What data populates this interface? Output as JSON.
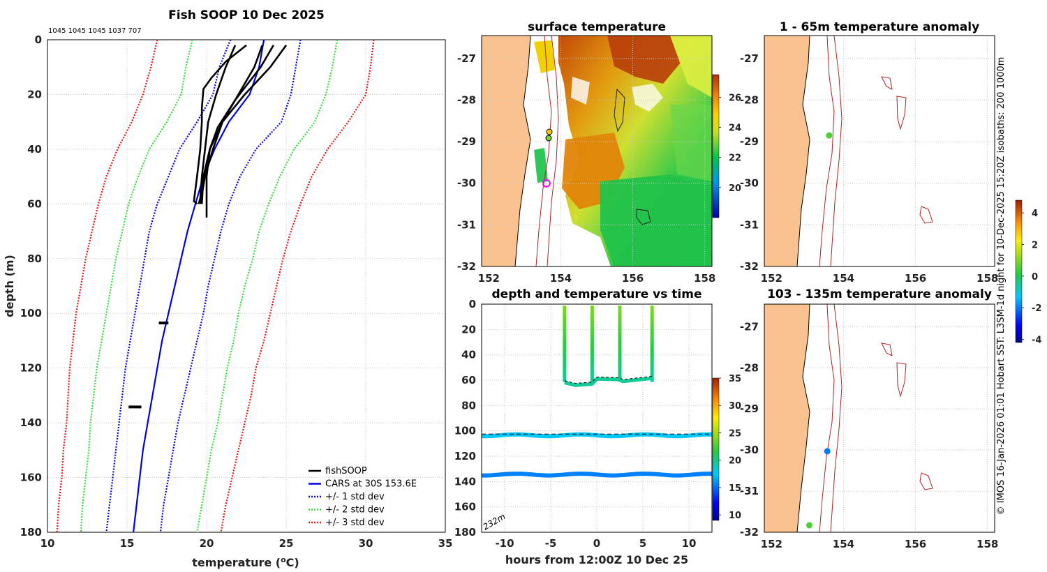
{
  "chart_data": [
    {
      "type": "line",
      "title": "Fish SOOP 10 Dec 2025",
      "subtitle": "1045 1045 1045 1037 707",
      "xlabel": "temperature (",
      "xlabel_sup": "o",
      "xlabel_tail": "C)",
      "ylabel": "depth (m)",
      "xlim": [
        10,
        35
      ],
      "ylim": [
        0,
        180
      ],
      "x_ticks": [
        "10",
        "15",
        "20",
        "25",
        "30",
        "35"
      ],
      "y_ticks": [
        "0",
        "20",
        "40",
        "60",
        "80",
        "100",
        "120",
        "140",
        "160",
        "180"
      ],
      "depths": [
        0,
        10,
        20,
        30,
        40,
        50,
        60,
        70,
        80,
        90,
        100,
        110,
        120,
        130,
        140,
        150,
        160,
        170,
        180
      ],
      "series": [
        {
          "name": "CARS at 30S 153.6E",
          "color": "#0000e6",
          "style": "solid",
          "values": [
            23.6,
            23.3,
            22.7,
            21.4,
            20.5,
            19.8,
            19.3,
            18.8,
            18.4,
            18.0,
            17.6,
            17.2,
            16.9,
            16.6,
            16.3,
            16.0,
            15.8,
            15.6,
            15.4
          ]
        },
        {
          "name": "+/- 1 std dev",
          "color": "#0000e6",
          "style": "dotted",
          "lower": [
            21.5,
            20.8,
            20.4,
            19.4,
            18.3,
            17.6,
            16.9,
            16.4,
            16.1,
            15.8,
            15.5,
            15.2,
            14.9,
            14.7,
            14.5,
            14.3,
            14.1,
            13.9,
            13.7
          ],
          "upper": [
            25.9,
            25.6,
            25.3,
            24.7,
            23.1,
            22.1,
            21.4,
            20.9,
            20.5,
            20.1,
            19.8,
            19.4,
            19.0,
            18.6,
            18.2,
            17.9,
            17.6,
            17.3,
            17.1
          ]
        },
        {
          "name": "+/- 2 std dev",
          "color": "#33dd33",
          "style": "dotted",
          "lower": [
            19.1,
            18.7,
            18.4,
            17.5,
            16.4,
            15.7,
            15.1,
            14.7,
            14.3,
            14.0,
            13.7,
            13.4,
            13.1,
            12.9,
            12.7,
            12.6,
            12.4,
            12.2,
            12.1
          ],
          "upper": [
            28.2,
            27.9,
            27.5,
            26.8,
            25.5,
            24.6,
            23.9,
            23.3,
            22.9,
            22.4,
            22.0,
            21.7,
            21.3,
            21.0,
            20.7,
            20.3,
            20.0,
            19.7,
            19.4
          ]
        },
        {
          "name": "+/- 3 std dev",
          "color": "#ee1111",
          "style": "dotted",
          "lower": [
            16.9,
            16.5,
            16.0,
            15.3,
            14.4,
            13.7,
            13.2,
            12.8,
            12.4,
            12.1,
            11.8,
            11.6,
            11.4,
            11.3,
            11.2,
            11.0,
            10.9,
            10.7,
            10.6
          ],
          "upper": [
            30.5,
            30.3,
            30.0,
            28.9,
            27.6,
            26.6,
            25.9,
            25.3,
            24.8,
            24.4,
            24.0,
            23.6,
            23.1,
            22.8,
            22.4,
            22.0,
            21.6,
            21.2,
            20.9
          ]
        }
      ],
      "fishsoop_profiles": [
        {
          "points": [
            [
              22.5,
              2
            ],
            [
              21.2,
              8
            ],
            [
              20.3,
              14
            ],
            [
              19.8,
              18
            ],
            [
              19.7,
              25
            ],
            [
              19.7,
              30
            ],
            [
              19.6,
              40
            ],
            [
              19.4,
              50
            ],
            [
              19.2,
              59
            ],
            [
              19.4,
              60
            ]
          ]
        },
        {
          "points": [
            [
              21.8,
              2
            ],
            [
              21.2,
              10
            ],
            [
              20.6,
              20
            ],
            [
              20.1,
              30
            ],
            [
              19.9,
              40
            ],
            [
              19.7,
              50
            ],
            [
              19.6,
              58
            ],
            [
              19.5,
              60
            ]
          ]
        },
        {
          "points": [
            [
              25.0,
              2
            ],
            [
              24.0,
              10
            ],
            [
              22.4,
              20
            ],
            [
              21.0,
              30
            ],
            [
              20.4,
              40
            ],
            [
              19.9,
              50
            ],
            [
              19.6,
              60
            ]
          ]
        },
        {
          "points": [
            [
              24.2,
              2
            ],
            [
              23.4,
              10
            ],
            [
              21.8,
              22
            ],
            [
              20.7,
              32
            ],
            [
              20.2,
              40
            ],
            [
              20.0,
              50
            ],
            [
              20.0,
              60
            ],
            [
              20.0,
              65
            ]
          ]
        },
        {
          "points": [
            [
              23.5,
              2
            ],
            [
              23.0,
              10
            ],
            [
              22.0,
              20
            ],
            [
              21.0,
              30
            ],
            [
              20.2,
              40
            ],
            [
              19.8,
              50
            ],
            [
              19.7,
              60
            ]
          ]
        }
      ],
      "fishsoop_clusters": [
        {
          "x": [
            17.0,
            17.6
          ],
          "depth": 103.5
        },
        {
          "x": [
            15.1,
            15.9
          ],
          "depth": 134.2
        }
      ],
      "legend": [
        "fishSOOP",
        "CARS at 30S 153.6E",
        "+/- 1 std dev",
        "+/- 2 std dev",
        "+/- 3 std dev"
      ],
      "legend_position": "bottom-right"
    },
    {
      "type": "heatmap",
      "title": "surface temperature",
      "x_ticks": [
        "152",
        "154",
        "156",
        "158"
      ],
      "y_ticks": [
        "-27",
        "-28",
        "-29",
        "-30",
        "-31",
        "-32"
      ],
      "colorbar_ticks": [
        "26",
        "24",
        "22",
        "20"
      ],
      "colorbar_range": [
        18,
        27.5
      ],
      "markers": [
        {
          "lon": 153.6,
          "lat": -30.0,
          "kind": "position-circle"
        }
      ]
    },
    {
      "type": "scatter",
      "title": "depth and temperature vs time",
      "xlabel": "hours from 12:00Z 10 Dec 25",
      "xlim": [
        -12.5,
        12.5
      ],
      "ylim": [
        0,
        180
      ],
      "x_ticks": [
        "-10",
        "-5",
        "0",
        "5",
        "10"
      ],
      "y_ticks": [
        "0",
        "20",
        "40",
        "60",
        "80",
        "100",
        "120",
        "140",
        "160",
        "180"
      ],
      "annotation": "232m",
      "colorbar_ticks": [
        "35",
        "30",
        "25",
        "20",
        "15",
        "10"
      ],
      "colorbar_range": [
        9,
        35
      ],
      "profile_times": [
        -3.5,
        -0.5,
        2.5,
        6.0
      ],
      "bottom_depth": 60,
      "moored_series": [
        {
          "depth": 103.5,
          "temp": 17.5
        },
        {
          "depth": 134.5,
          "temp": 15.5
        }
      ]
    },
    {
      "type": "heatmap",
      "title": "1 - 65m temperature anomaly",
      "x_ticks": [
        "152",
        "154",
        "156",
        "158"
      ],
      "y_ticks": [
        "-27",
        "-28",
        "-29",
        "-30",
        "-31",
        "-32"
      ],
      "points": [
        {
          "lon": 153.6,
          "lat": -28.85,
          "anomaly": 0.5
        }
      ]
    },
    {
      "type": "heatmap",
      "title": "103 - 135m temperature anomaly",
      "x_ticks": [
        "152",
        "154",
        "156",
        "158"
      ],
      "y_ticks": [
        "-27",
        "-28",
        "-29",
        "-30",
        "-31",
        "-32"
      ],
      "points": [
        {
          "lon": 153.55,
          "lat": -30.03,
          "anomaly": -2
        },
        {
          "lon": 153.05,
          "lat": -31.83,
          "anomaly": 0.5
        }
      ],
      "colorbar_ticks": [
        "4",
        "2",
        "0",
        "-2",
        "-4"
      ],
      "colorbar_range": [
        -4.2,
        4.8
      ]
    }
  ],
  "credit": "© IMOS 16-Jan-2026 01:01 Hobart SST: L3SM-1d night for 10-Dec-2025 15:20Z isobaths: 200  1000m",
  "colors": {
    "land": "#f9c28e",
    "isobath": "#b22222",
    "grid": "#c8c8c8",
    "fishsoop": "#000000"
  }
}
